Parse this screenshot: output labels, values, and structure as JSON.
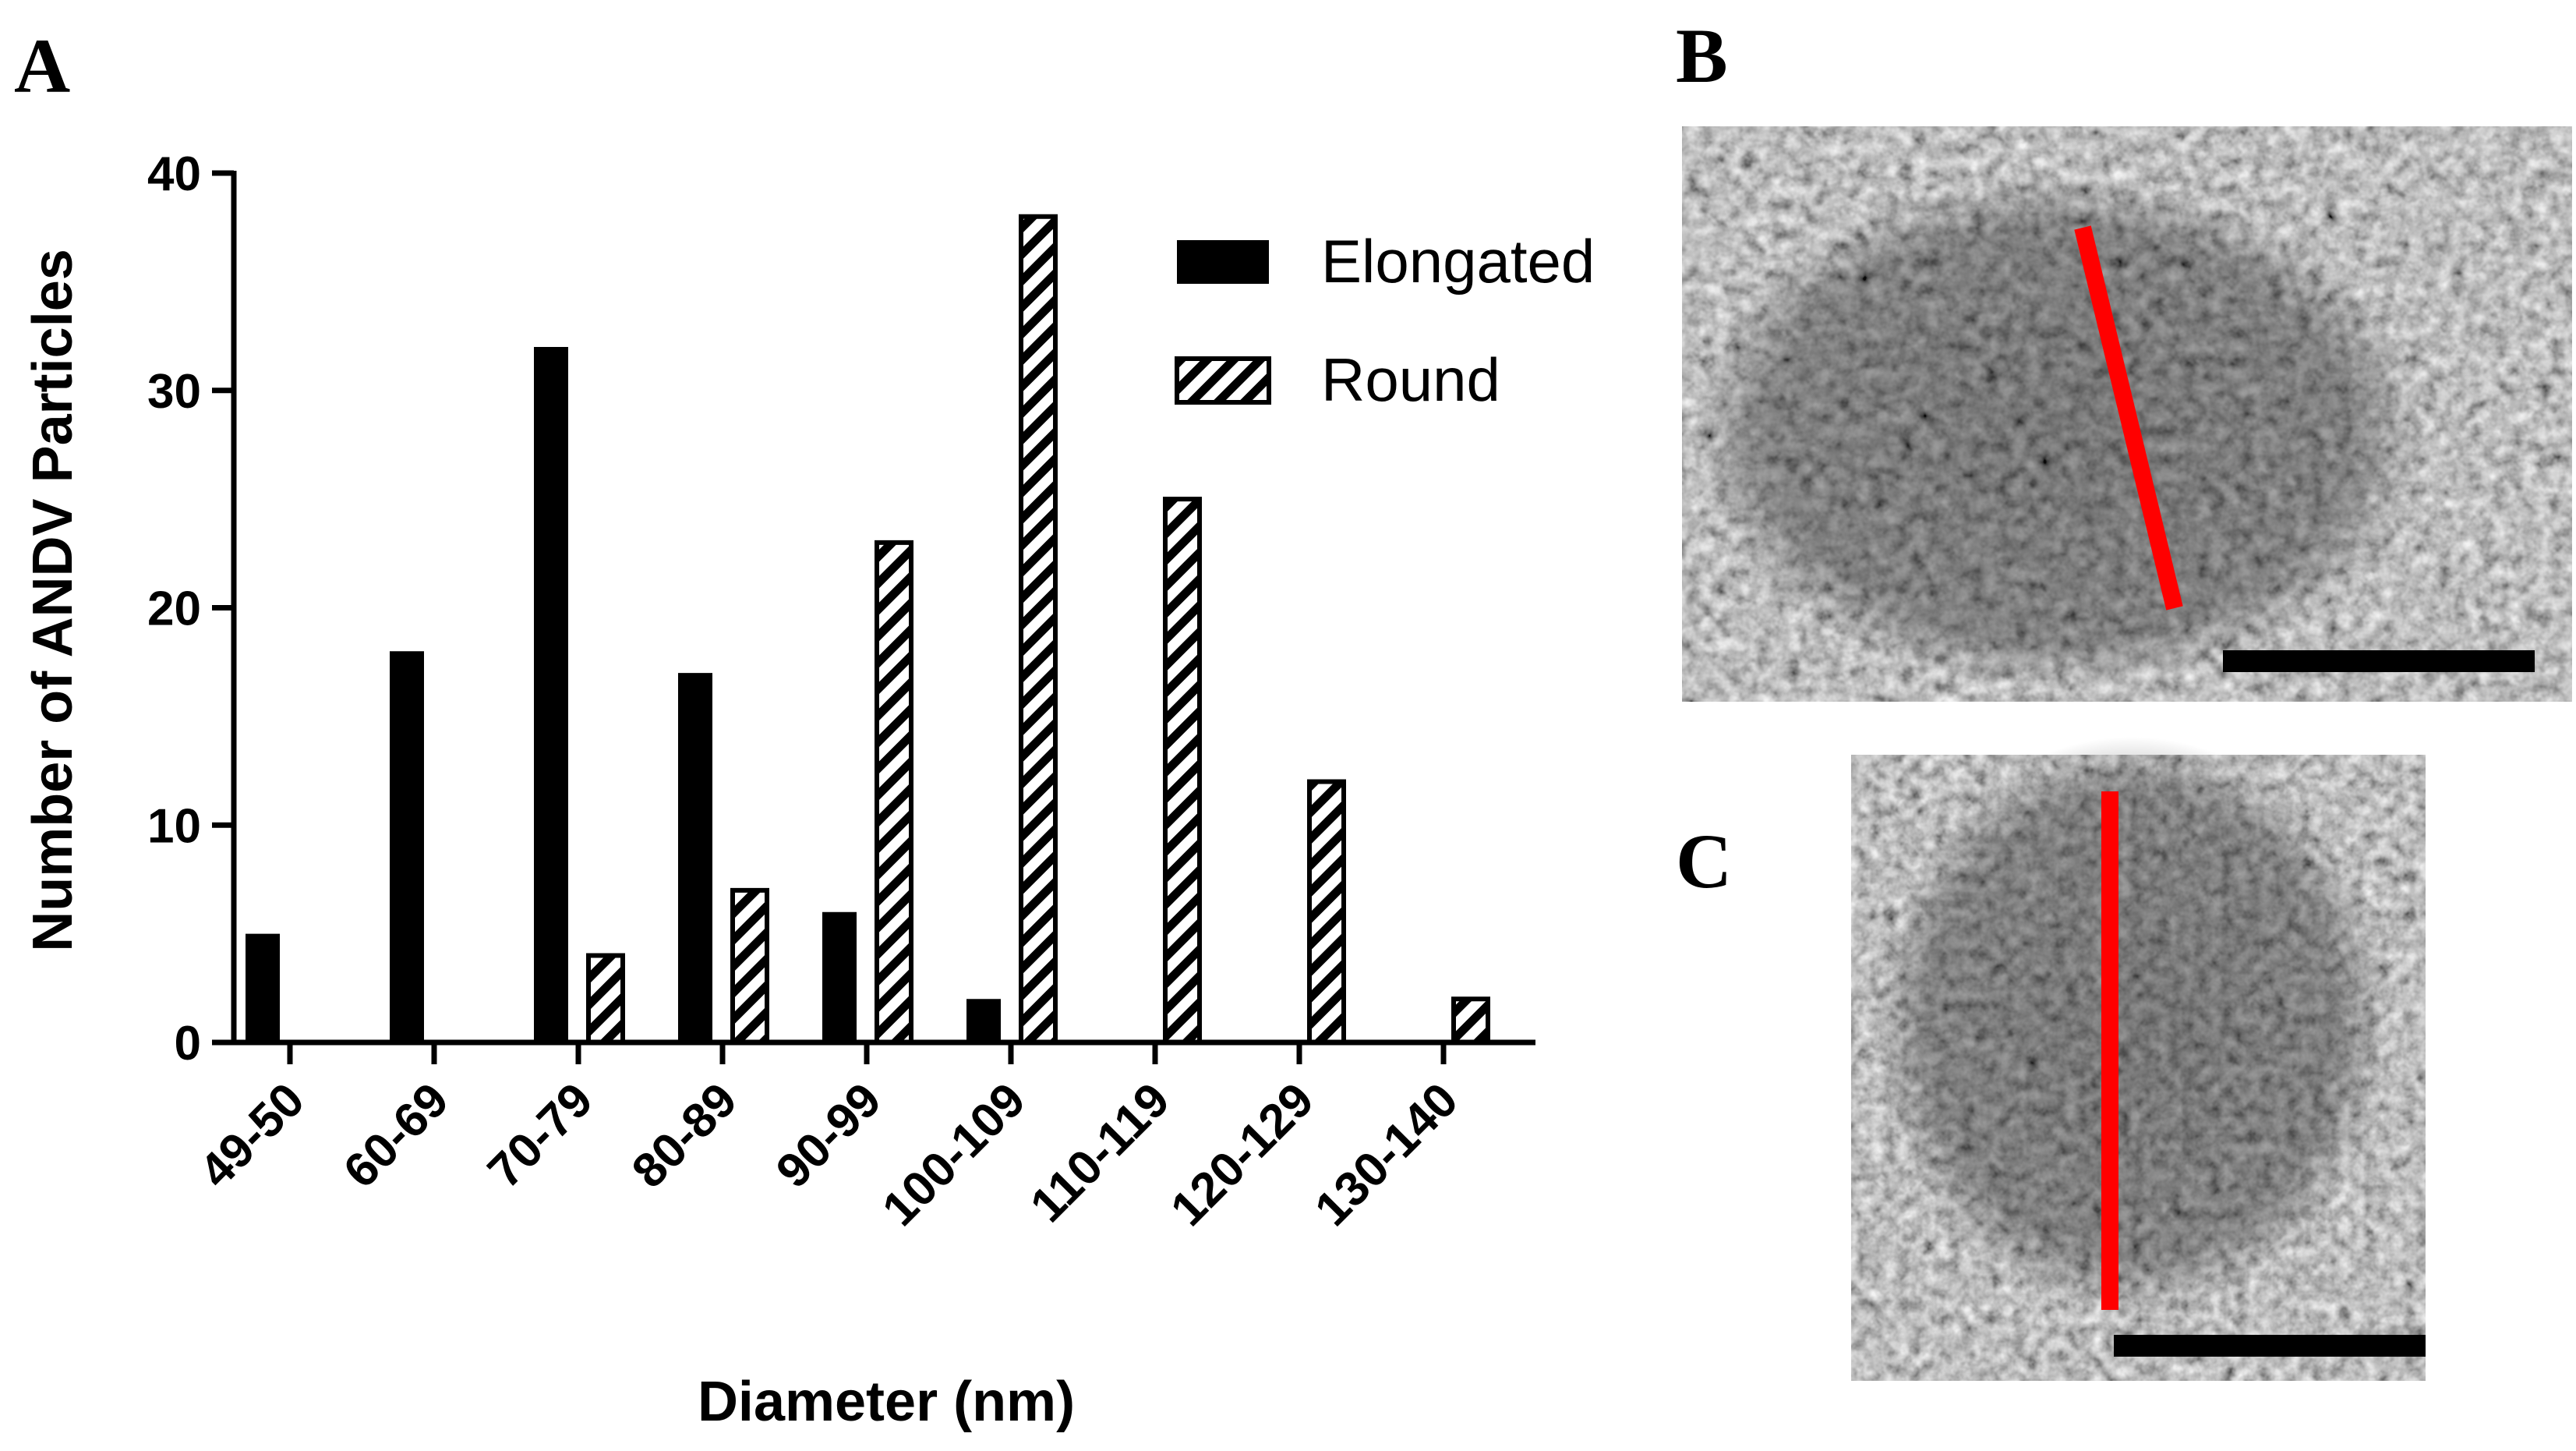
{
  "panels": {
    "a_label": "A",
    "b_label": "B",
    "c_label": "C"
  },
  "chart_data": {
    "type": "bar",
    "categories": [
      "49-50",
      "60-69",
      "70-79",
      "80-89",
      "90-99",
      "100-109",
      "110-119",
      "120-129",
      "130-140"
    ],
    "series": [
      {
        "name": "Elongated",
        "values": [
          5,
          18,
          32,
          17,
          6,
          2,
          0,
          0,
          0
        ],
        "fill": "solid",
        "color": "#000000"
      },
      {
        "name": "Round",
        "values": [
          0,
          0,
          4,
          7,
          23,
          38,
          25,
          12,
          2
        ],
        "fill": "hatched",
        "color": "#000000"
      }
    ],
    "xlabel": "Diameter (nm)",
    "ylabel": "Number of ANDV Particles",
    "ylim": [
      0,
      40
    ],
    "yticks": [
      "0",
      "10",
      "20",
      "30",
      "40"
    ],
    "grid": false,
    "legend_position": "top-right"
  },
  "images": {
    "b": {
      "marker_color": "#ff0000",
      "scale_bar_color": "#000000"
    },
    "c": {
      "marker_color": "#ff0000",
      "scale_bar_color": "#000000"
    }
  }
}
